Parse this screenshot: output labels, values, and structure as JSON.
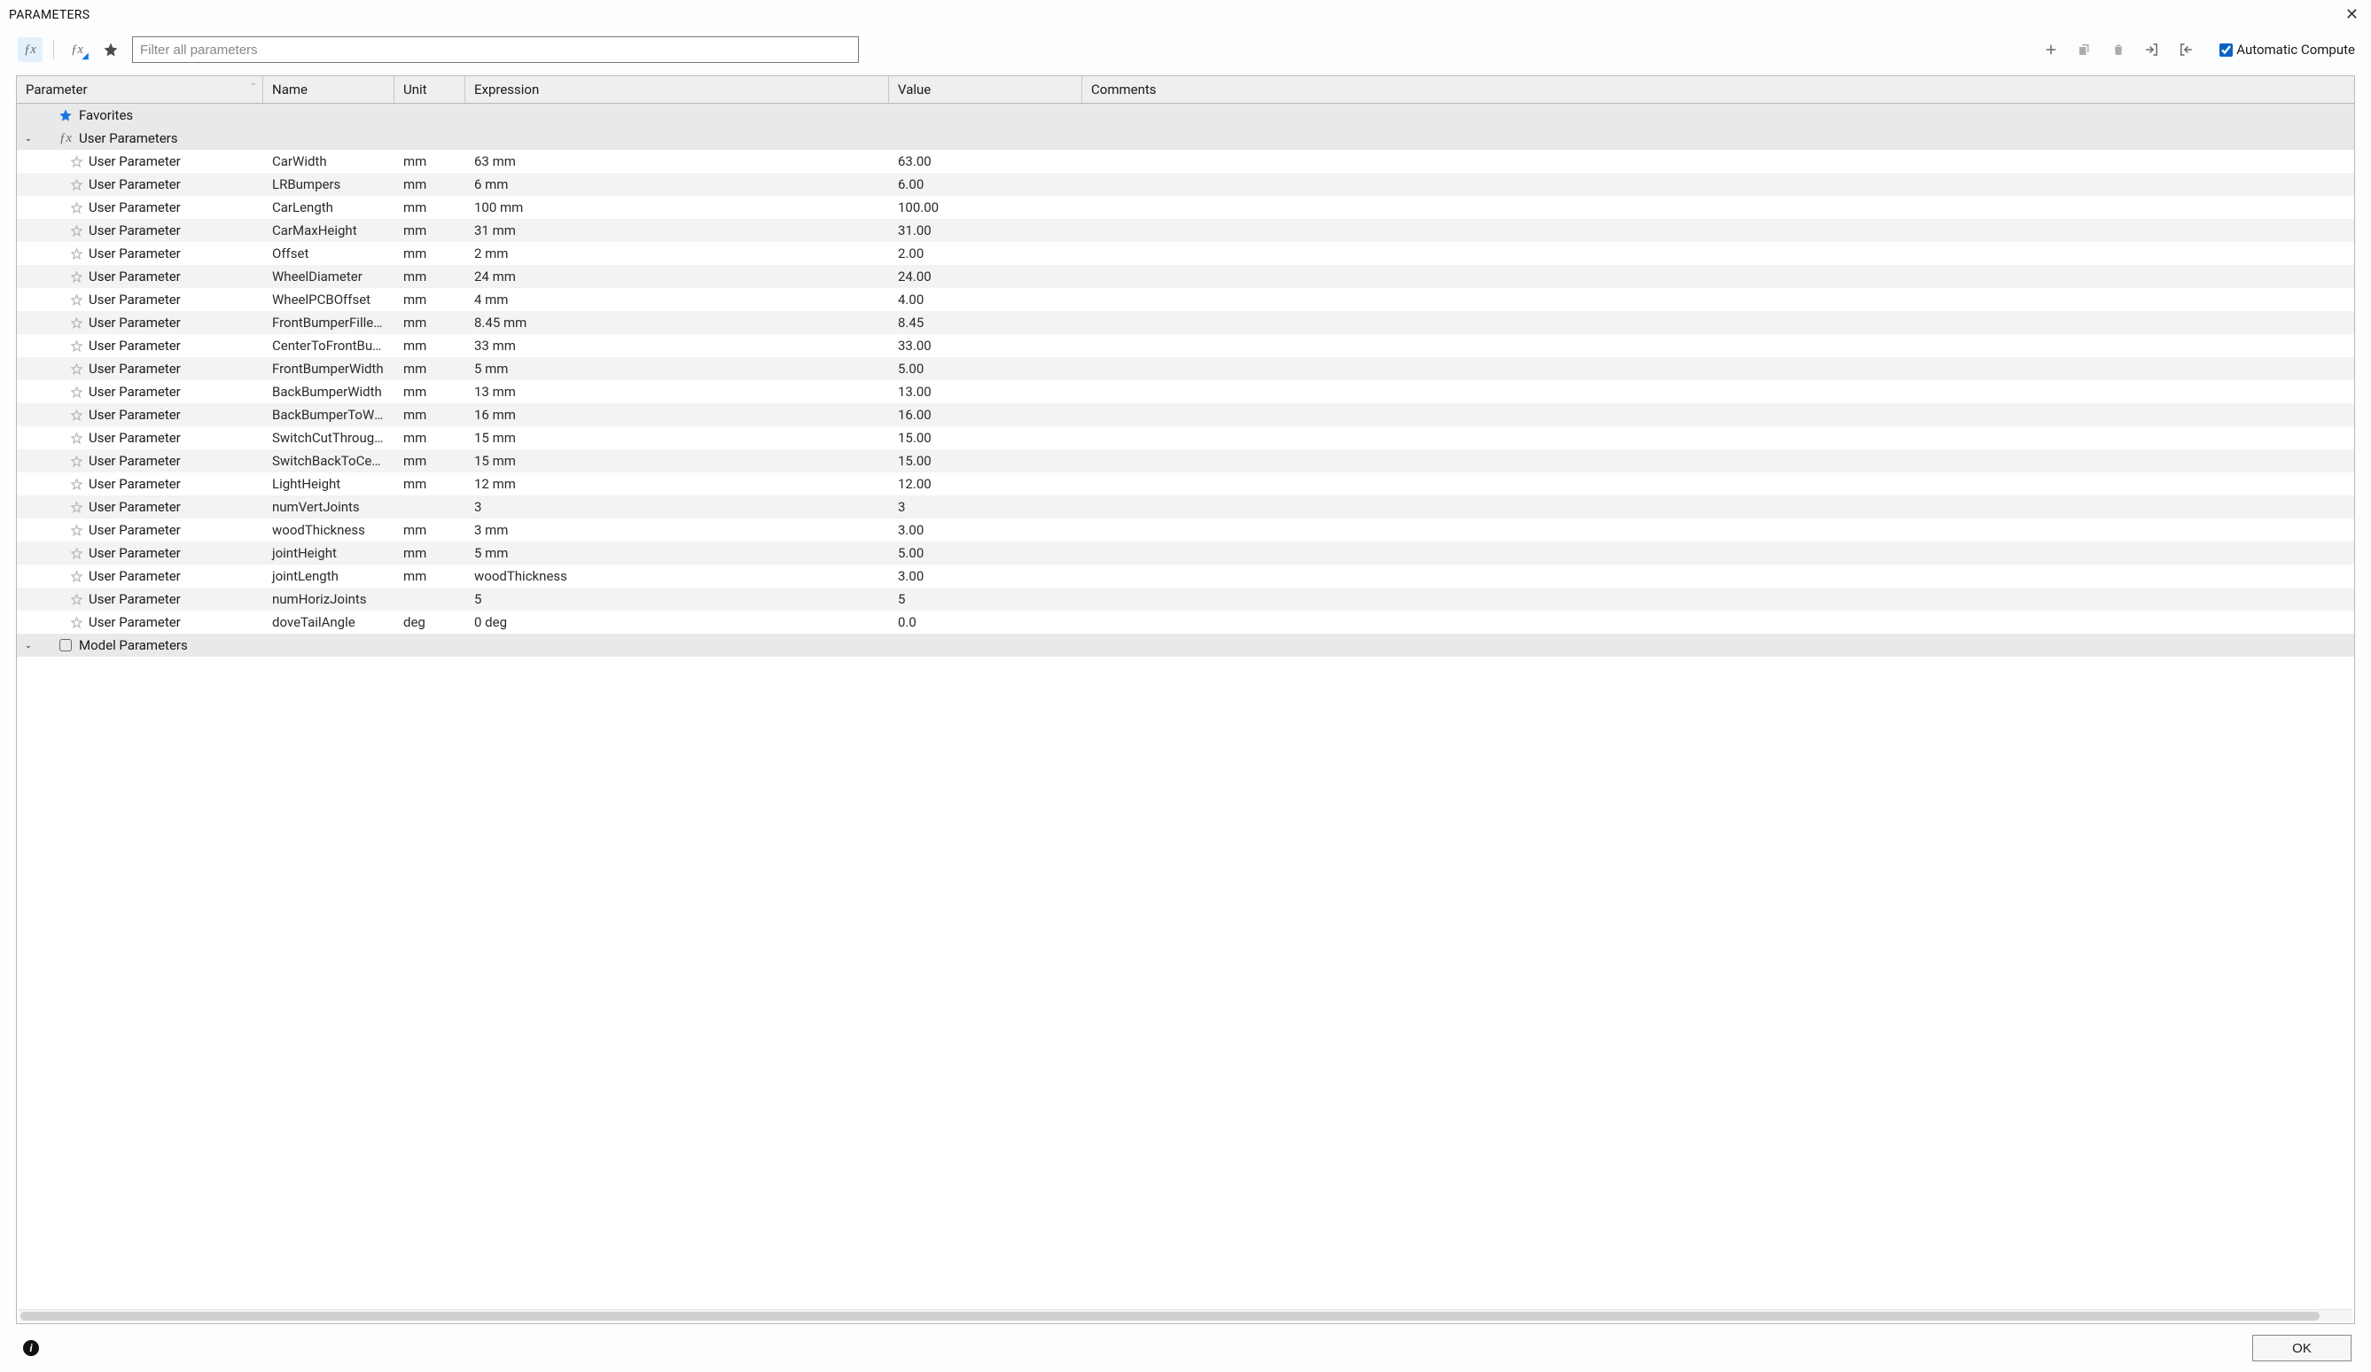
{
  "window": {
    "title": "PARAMETERS"
  },
  "toolbar": {
    "filter_placeholder": "Filter all parameters",
    "auto_compute_label": "Automatic Compute",
    "auto_compute_checked": true
  },
  "columns": {
    "parameter": "Parameter",
    "name": "Name",
    "unit": "Unit",
    "expression": "Expression",
    "value": "Value",
    "comments": "Comments"
  },
  "sections": {
    "favorites": "Favorites",
    "user_params": "User Parameters",
    "model_params": "Model Parameters"
  },
  "footer": {
    "ok": "OK"
  },
  "row_label": "User Parameter",
  "rows": [
    {
      "name": "CarWidth",
      "unit": "mm",
      "expr": "63 mm",
      "value": "63.00"
    },
    {
      "name": "LRBumpers",
      "unit": "mm",
      "expr": "6 mm",
      "value": "6.00"
    },
    {
      "name": "CarLength",
      "unit": "mm",
      "expr": "100 mm",
      "value": "100.00"
    },
    {
      "name": "CarMaxHeight",
      "unit": "mm",
      "expr": "31 mm",
      "value": "31.00"
    },
    {
      "name": "Offset",
      "unit": "mm",
      "expr": "2 mm",
      "value": "2.00"
    },
    {
      "name": "WheelDiameter",
      "unit": "mm",
      "expr": "24 mm",
      "value": "24.00"
    },
    {
      "name": "WheelPCBOffset",
      "unit": "mm",
      "expr": "4 mm",
      "value": "4.00"
    },
    {
      "name": "FrontBumperFillet…",
      "unit": "mm",
      "expr": "8.45 mm",
      "value": "8.45"
    },
    {
      "name": "CenterToFrontBum…",
      "unit": "mm",
      "expr": "33 mm",
      "value": "33.00"
    },
    {
      "name": "FrontBumperWidth",
      "unit": "mm",
      "expr": "5 mm",
      "value": "5.00"
    },
    {
      "name": "BackBumperWidth",
      "unit": "mm",
      "expr": "13 mm",
      "value": "13.00"
    },
    {
      "name": "BackBumperToWh…",
      "unit": "mm",
      "expr": "16 mm",
      "value": "16.00"
    },
    {
      "name": "SwitchCutThrough…",
      "unit": "mm",
      "expr": "15 mm",
      "value": "15.00"
    },
    {
      "name": "SwitchBackToCenter",
      "unit": "mm",
      "expr": "15 mm",
      "value": "15.00"
    },
    {
      "name": "LightHeight",
      "unit": "mm",
      "expr": "12 mm",
      "value": "12.00"
    },
    {
      "name": "numVertJoints",
      "unit": "",
      "expr": "3",
      "value": "3"
    },
    {
      "name": "woodThickness",
      "unit": "mm",
      "expr": "3 mm",
      "value": "3.00"
    },
    {
      "name": "jointHeight",
      "unit": "mm",
      "expr": "5 mm",
      "value": "5.00"
    },
    {
      "name": "jointLength",
      "unit": "mm",
      "expr": "woodThickness",
      "value": "3.00"
    },
    {
      "name": "numHorizJoints",
      "unit": "",
      "expr": "5",
      "value": "5"
    },
    {
      "name": "doveTailAngle",
      "unit": "deg",
      "expr": "0 deg",
      "value": "0.0"
    }
  ],
  "colors": {
    "accent": "#1a73e8",
    "header_bg": "#efefef",
    "alt_row": "#f3f3f3",
    "section_row": "#e9e9e9",
    "border": "#b8b8b8"
  }
}
